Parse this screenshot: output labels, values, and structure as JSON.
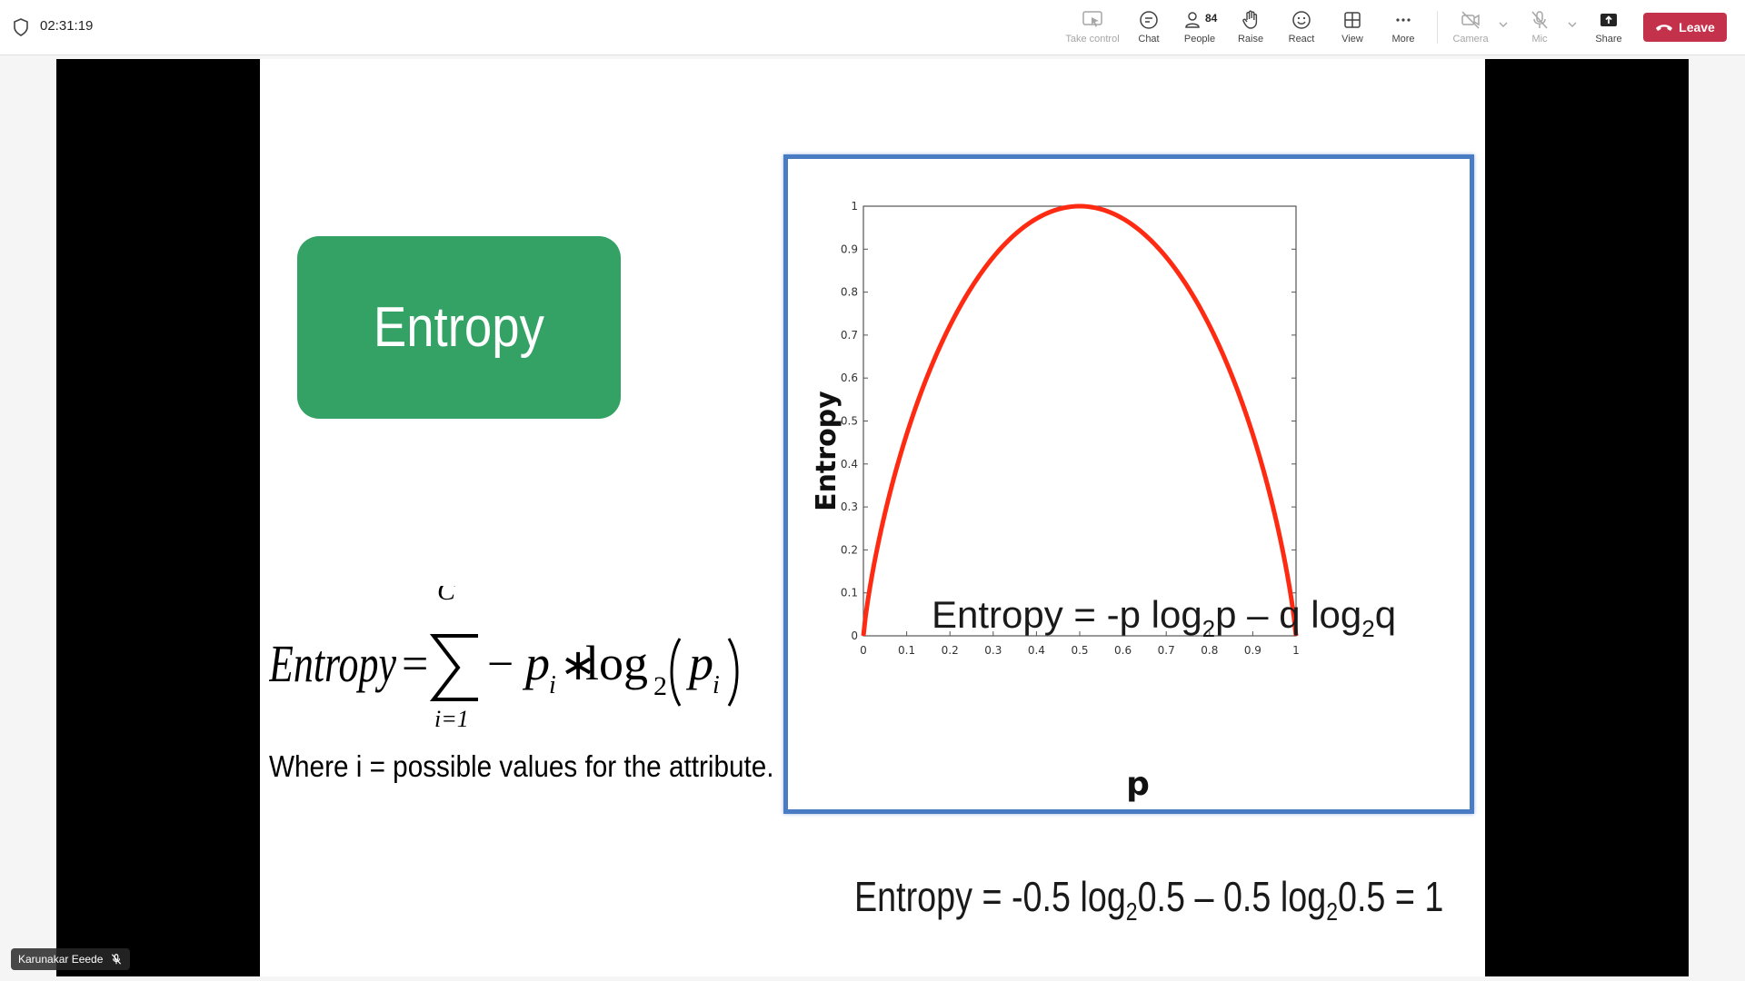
{
  "topbar": {
    "timer": "02:31:19",
    "buttons": [
      {
        "label": "Take control",
        "icon": "take-control-icon",
        "disabled": true
      },
      {
        "label": "Chat",
        "icon": "chat-icon"
      },
      {
        "label": "People",
        "icon": "people-icon",
        "count": "84"
      },
      {
        "label": "Raise",
        "icon": "raise-hand-icon"
      },
      {
        "label": "React",
        "icon": "react-icon"
      },
      {
        "label": "View",
        "icon": "view-icon"
      },
      {
        "label": "More",
        "icon": "more-icon"
      },
      {
        "label": "Camera",
        "icon": "camera-off-icon",
        "disabled": true
      },
      {
        "label": "Mic",
        "icon": "mic-off-icon",
        "disabled": true
      },
      {
        "label": "Share",
        "icon": "share-icon"
      }
    ],
    "leave_label": "Leave",
    "leave_color": "#c4314b"
  },
  "slide": {
    "title": "Entropy",
    "title_color": "#34a265",
    "formula": {
      "lhs": "Entropy",
      "eq": "=",
      "upper": "C",
      "lower": "i=1",
      "body_minus": "−",
      "p": "p",
      "sub_i": "i",
      "times": "∗",
      "log": "log",
      "base": "2"
    },
    "where_text": "Where i = possible values for the attribute.",
    "bottom_equation": {
      "part1": "Entropy = -0.5 log",
      "sub1": "2",
      "part2": "0.5 – 0.5 log",
      "sub2": "2",
      "part3": "0.5 = 1"
    }
  },
  "chart_data": {
    "type": "line",
    "xlabel": "p",
    "ylabel": "Entropy",
    "xlim": [
      0,
      1
    ],
    "ylim": [
      0,
      1
    ],
    "x_ticks": [
      "0",
      "0.1",
      "0.2",
      "0.3",
      "0.4",
      "0.5",
      "0.6",
      "0.7",
      "0.8",
      "0.9",
      "1"
    ],
    "y_ticks": [
      "0",
      "0.1",
      "0.2",
      "0.3",
      "0.4",
      "0.5",
      "0.6",
      "0.7",
      "0.8",
      "0.9",
      "1"
    ],
    "annotation": {
      "part1": "Entropy  = -p log",
      "sub1": "2",
      "part2": "p – q log",
      "sub2": "2",
      "part3": "q"
    },
    "series": [
      {
        "color": "#ff2a12",
        "x": [
          0,
          0.01,
          0.05,
          0.1,
          0.15,
          0.2,
          0.25,
          0.3,
          0.35,
          0.4,
          0.45,
          0.5,
          0.55,
          0.6,
          0.65,
          0.7,
          0.75,
          0.8,
          0.85,
          0.9,
          0.95,
          0.99,
          1
        ],
        "values": [
          0,
          0.081,
          0.286,
          0.469,
          0.61,
          0.722,
          0.811,
          0.881,
          0.934,
          0.971,
          0.993,
          1,
          0.993,
          0.971,
          0.934,
          0.881,
          0.811,
          0.722,
          0.61,
          0.469,
          0.286,
          0.081,
          0
        ]
      }
    ]
  },
  "footer": {
    "participant_name": "Karunakar Eeede"
  }
}
